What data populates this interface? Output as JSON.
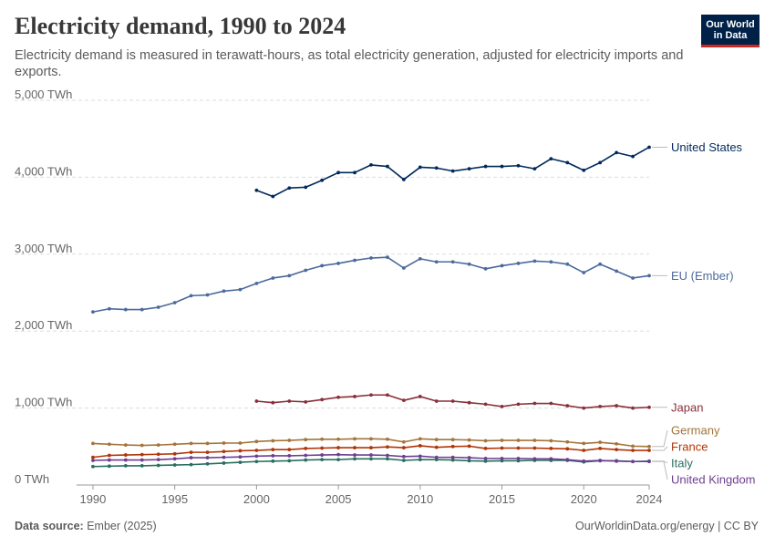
{
  "header": {
    "title": "Electricity demand, 1990 to 2024",
    "subtitle": "Electricity demand is measured in terawatt-hours, as total electricity generation, adjusted for electricity imports and exports."
  },
  "logo": {
    "line1": "Our World",
    "line2": "in Data"
  },
  "footer": {
    "source_label": "Data source:",
    "source_value": "Ember (2025)",
    "credit": "OurWorldinData.org/energy | CC BY"
  },
  "chart_data": {
    "type": "line",
    "title": "Electricity demand, 1990 to 2024",
    "xlabel": "",
    "ylabel": "",
    "xlim": [
      1989,
      2024
    ],
    "ylim": [
      0,
      5000
    ],
    "y_ticks": [
      {
        "value": 0,
        "label": "0 TWh"
      },
      {
        "value": 1000,
        "label": "1,000 TWh"
      },
      {
        "value": 2000,
        "label": "2,000 TWh"
      },
      {
        "value": 3000,
        "label": "3,000 TWh"
      },
      {
        "value": 4000,
        "label": "4,000 TWh"
      },
      {
        "value": 5000,
        "label": "5,000 TWh"
      }
    ],
    "x_ticks": [
      {
        "value": 1990,
        "label": "1990"
      },
      {
        "value": 1995,
        "label": "1995"
      },
      {
        "value": 2000,
        "label": "2000"
      },
      {
        "value": 2005,
        "label": "2005"
      },
      {
        "value": 2010,
        "label": "2010"
      },
      {
        "value": 2015,
        "label": "2015"
      },
      {
        "value": 2020,
        "label": "2020"
      },
      {
        "value": 2024,
        "label": "2024"
      }
    ],
    "grid": true,
    "legend": "right, labels at line ends",
    "series": [
      {
        "name": "United States",
        "color": "#00295b",
        "x": [
          2000,
          2001,
          2002,
          2003,
          2004,
          2005,
          2006,
          2007,
          2008,
          2009,
          2010,
          2011,
          2012,
          2013,
          2014,
          2015,
          2016,
          2017,
          2018,
          2019,
          2020,
          2021,
          2022,
          2023,
          2024
        ],
        "values": [
          3830,
          3750,
          3860,
          3870,
          3960,
          4060,
          4060,
          4160,
          4140,
          3970,
          4130,
          4120,
          4080,
          4110,
          4140,
          4140,
          4150,
          4110,
          4240,
          4190,
          4090,
          4190,
          4320,
          4270,
          4390
        ]
      },
      {
        "name": "EU (Ember)",
        "color": "#4c6a9c",
        "x": [
          1990,
          1991,
          1992,
          1993,
          1994,
          1995,
          1996,
          1997,
          1998,
          1999,
          2000,
          2001,
          2002,
          2003,
          2004,
          2005,
          2006,
          2007,
          2008,
          2009,
          2010,
          2011,
          2012,
          2013,
          2014,
          2015,
          2016,
          2017,
          2018,
          2019,
          2020,
          2021,
          2022,
          2023,
          2024
        ],
        "values": [
          2250,
          2290,
          2280,
          2280,
          2310,
          2370,
          2460,
          2470,
          2520,
          2540,
          2620,
          2690,
          2720,
          2790,
          2850,
          2880,
          2920,
          2950,
          2960,
          2820,
          2940,
          2900,
          2900,
          2870,
          2810,
          2850,
          2880,
          2910,
          2900,
          2870,
          2760,
          2870,
          2780,
          2690,
          2720
        ]
      },
      {
        "name": "Japan",
        "color": "#883039",
        "x": [
          2000,
          2001,
          2002,
          2003,
          2004,
          2005,
          2006,
          2007,
          2008,
          2009,
          2010,
          2011,
          2012,
          2013,
          2014,
          2015,
          2016,
          2017,
          2018,
          2019,
          2020,
          2021,
          2022,
          2023,
          2024
        ],
        "values": [
          1090,
          1070,
          1090,
          1080,
          1110,
          1140,
          1150,
          1170,
          1170,
          1100,
          1150,
          1090,
          1090,
          1070,
          1050,
          1020,
          1050,
          1060,
          1060,
          1030,
          1000,
          1020,
          1030,
          1000,
          1010
        ]
      },
      {
        "name": "Germany",
        "color": "#a2753b",
        "x": [
          1990,
          1991,
          1992,
          1993,
          1994,
          1995,
          1996,
          1997,
          1998,
          1999,
          2000,
          2001,
          2002,
          2003,
          2004,
          2005,
          2006,
          2007,
          2008,
          2009,
          2010,
          2011,
          2012,
          2013,
          2014,
          2015,
          2016,
          2017,
          2018,
          2019,
          2020,
          2021,
          2022,
          2023,
          2024
        ],
        "values": [
          540,
          530,
          520,
          515,
          520,
          530,
          540,
          540,
          545,
          545,
          565,
          575,
          580,
          590,
          595,
          595,
          600,
          600,
          595,
          560,
          600,
          590,
          590,
          585,
          575,
          580,
          580,
          580,
          575,
          560,
          540,
          555,
          535,
          505,
          500
        ]
      },
      {
        "name": "France",
        "color": "#b13507",
        "x": [
          1990,
          1991,
          1992,
          1993,
          1994,
          1995,
          1996,
          1997,
          1998,
          1999,
          2000,
          2001,
          2002,
          2003,
          2004,
          2005,
          2006,
          2007,
          2008,
          2009,
          2010,
          2011,
          2012,
          2013,
          2014,
          2015,
          2016,
          2017,
          2018,
          2019,
          2020,
          2021,
          2022,
          2023,
          2024
        ],
        "values": [
          360,
          385,
          390,
          395,
          400,
          405,
          425,
          425,
          435,
          445,
          450,
          460,
          460,
          475,
          480,
          485,
          485,
          485,
          495,
          485,
          510,
          490,
          500,
          505,
          475,
          480,
          480,
          480,
          475,
          470,
          450,
          475,
          460,
          450,
          450
        ]
      },
      {
        "name": "Italy",
        "color": "#286f5e",
        "x": [
          1990,
          1991,
          1992,
          1993,
          1994,
          1995,
          1996,
          1997,
          1998,
          1999,
          2000,
          2001,
          2002,
          2003,
          2004,
          2005,
          2006,
          2007,
          2008,
          2009,
          2010,
          2011,
          2012,
          2013,
          2014,
          2015,
          2016,
          2017,
          2018,
          2019,
          2020,
          2021,
          2022,
          2023,
          2024
        ],
        "values": [
          240,
          245,
          250,
          250,
          255,
          260,
          265,
          275,
          285,
          295,
          305,
          310,
          315,
          325,
          330,
          330,
          340,
          340,
          340,
          320,
          330,
          330,
          325,
          315,
          310,
          315,
          315,
          320,
          320,
          320,
          300,
          315,
          315,
          305,
          310
        ]
      },
      {
        "name": "United Kingdom",
        "color": "#6d3e91",
        "x": [
          1990,
          1991,
          1992,
          1993,
          1994,
          1995,
          1996,
          1997,
          1998,
          1999,
          2000,
          2001,
          2002,
          2003,
          2004,
          2005,
          2006,
          2007,
          2008,
          2009,
          2010,
          2011,
          2012,
          2013,
          2014,
          2015,
          2016,
          2017,
          2018,
          2019,
          2020,
          2021,
          2022,
          2023,
          2024
        ],
        "values": [
          320,
          325,
          325,
          325,
          330,
          340,
          355,
          355,
          360,
          365,
          375,
          380,
          380,
          385,
          390,
          395,
          390,
          390,
          385,
          370,
          375,
          360,
          360,
          355,
          345,
          345,
          345,
          340,
          340,
          330,
          310,
          320,
          310,
          305,
          305
        ]
      }
    ]
  }
}
